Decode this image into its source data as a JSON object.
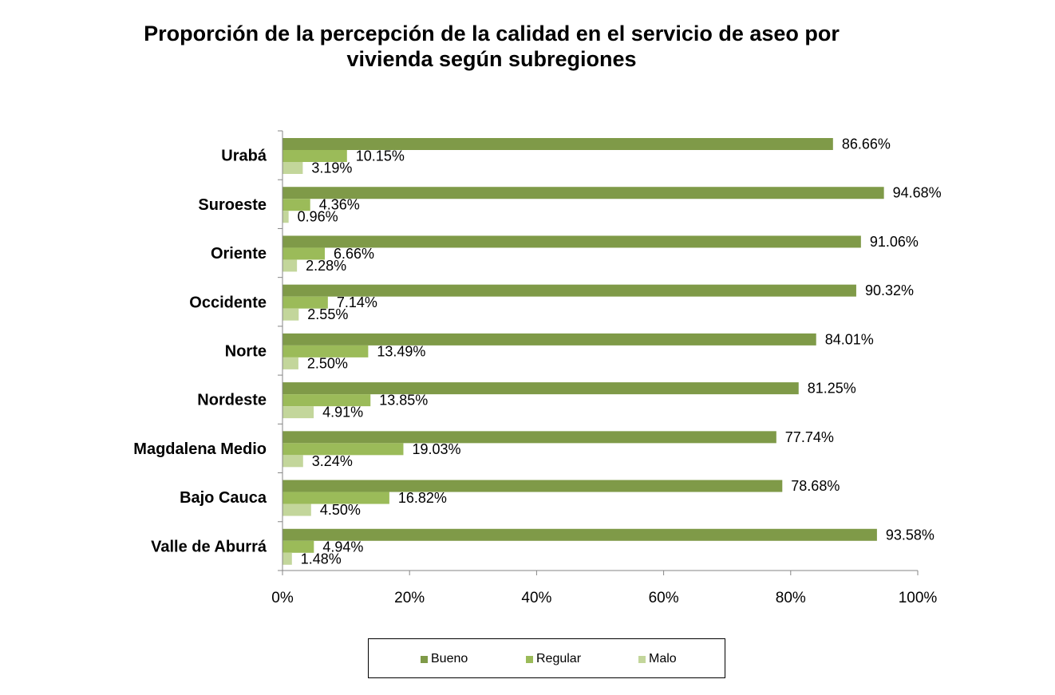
{
  "chart_data": {
    "type": "bar",
    "orientation": "horizontal",
    "title": "Proporción de la percepción de la calidad en el servicio de aseo por vivienda según subregiones",
    "title_lines": [
      "Proporción de la percepción de la calidad en el servicio de aseo por",
      "vivienda según subregiones"
    ],
    "categories": [
      "Urabá",
      "Suroeste",
      "Oriente",
      "Occidente",
      "Norte",
      "Nordeste",
      "Magdalena Medio",
      "Bajo Cauca",
      "Valle de Aburrá"
    ],
    "series": [
      {
        "name": "Bueno",
        "color": "#7f9a48",
        "values": [
          86.66,
          94.68,
          91.06,
          90.32,
          84.01,
          81.25,
          77.74,
          78.68,
          93.58
        ],
        "labels": [
          "86.66%",
          "94.68%",
          "91.06%",
          "90.32%",
          "84.01%",
          "81.25%",
          "77.74%",
          "78.68%",
          "93.58%"
        ]
      },
      {
        "name": "Regular",
        "color": "#9bbb59",
        "values": [
          10.15,
          4.36,
          6.66,
          7.14,
          13.49,
          13.85,
          19.03,
          16.82,
          4.94
        ],
        "labels": [
          "10.15%",
          "4.36%",
          "6.66%",
          "7.14%",
          "13.49%",
          "13.85%",
          "19.03%",
          "16.82%",
          "4.94%"
        ]
      },
      {
        "name": "Malo",
        "color": "#c3d69b",
        "values": [
          3.19,
          0.96,
          2.28,
          2.55,
          2.5,
          4.91,
          3.24,
          4.5,
          1.48
        ],
        "labels": [
          "3.19%",
          "0.96%",
          "2.28%",
          "2.55%",
          "2.50%",
          "4.91%",
          "3.24%",
          "4.50%",
          "1.48%"
        ]
      }
    ],
    "xaxis": {
      "min": 0,
      "max": 100,
      "ticks": [
        0,
        20,
        40,
        60,
        80,
        100
      ],
      "tick_labels": [
        "0%",
        "20%",
        "40%",
        "60%",
        "80%",
        "100%"
      ]
    },
    "xlabel": "",
    "ylabel": "",
    "grid": false,
    "legend_position": "bottom"
  },
  "legend": [
    {
      "label": "Bueno",
      "color": "#7f9a48"
    },
    {
      "label": "Regular",
      "color": "#9bbb59"
    },
    {
      "label": "Malo",
      "color": "#c3d69b"
    }
  ]
}
